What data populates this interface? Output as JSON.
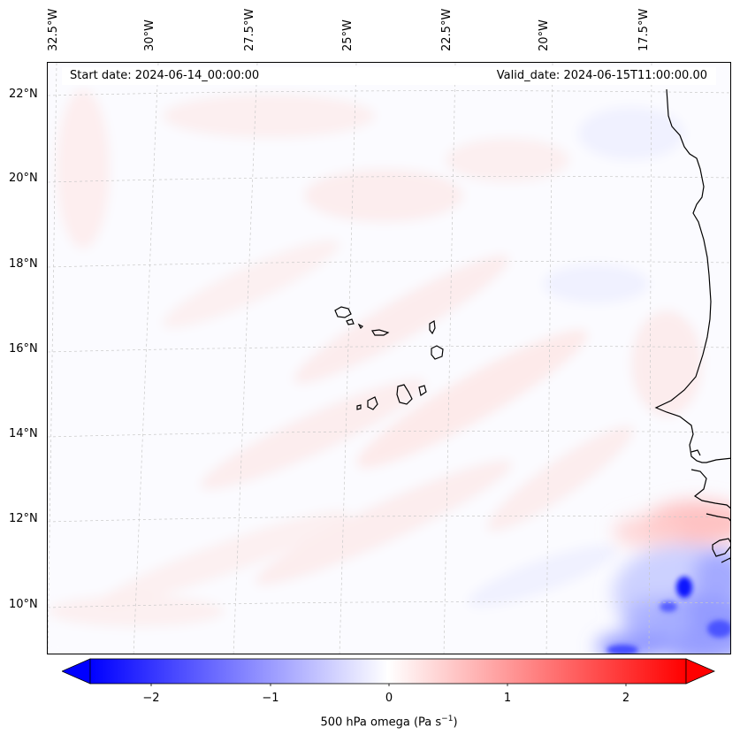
{
  "map": {
    "start_date": "Start date: 2024-06-14_00:00:00",
    "valid_date": "Valid_date: 2024-06-15T11:00:00.00",
    "lon_labels": [
      "32.5°W",
      "30°W",
      "27.5°W",
      "25°W",
      "22.5°W",
      "20°W",
      "17.5°W"
    ],
    "lat_labels": [
      "22°N",
      "20°N",
      "18°N",
      "16°N",
      "14°N",
      "12°N",
      "10°N"
    ],
    "colors": {
      "coastline": "#000000",
      "gridline": "#c8c8c8",
      "positive": "#ff0000",
      "negative": "#0000ff",
      "neutral": "#ffffff"
    }
  },
  "colorbar": {
    "label_main": "500 hPa omega (Pa s",
    "label_sup": "−1",
    "label_close": ")",
    "ticks": [
      "−2",
      "−1",
      "0",
      "1",
      "2"
    ],
    "min": -2.75,
    "max": 2.75
  }
}
